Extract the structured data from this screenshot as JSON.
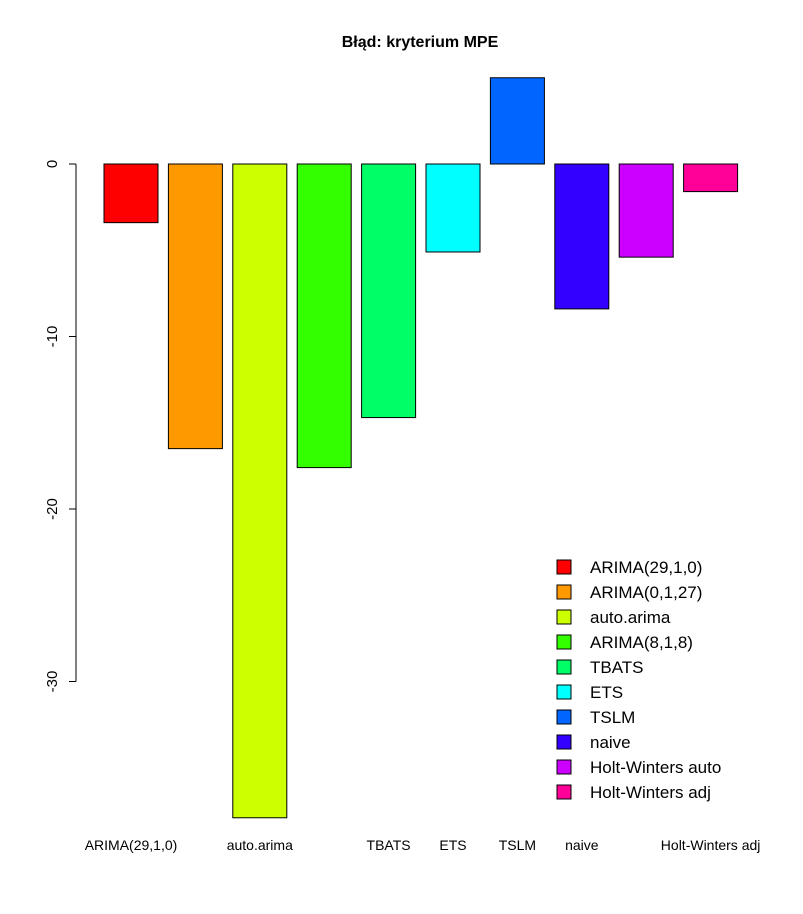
{
  "chart_data": {
    "type": "bar",
    "title": "Błąd: kryterium MPE",
    "xlabel": "",
    "ylabel": "",
    "ylim": [
      -38,
      5
    ],
    "yticks": [
      0,
      -10,
      -20,
      -30
    ],
    "categories": [
      "ARIMA(29,1,0)",
      "ARIMA(0,1,27)",
      "auto.arima",
      "ARIMA(8,1,8)",
      "TBATS",
      "ETS",
      "TSLM",
      "naive",
      "Holt-Winters auto",
      "Holt-Winters adj"
    ],
    "visible_category_labels": [
      "ARIMA(29,1,0)",
      "",
      "auto.arima",
      "",
      "TBATS",
      "ETS",
      "TSLM",
      "naive",
      "",
      "Holt-Winters adj"
    ],
    "values": [
      -3.4,
      -16.5,
      -37.9,
      -17.6,
      -14.7,
      -5.1,
      5.0,
      -8.4,
      -5.4,
      -1.6
    ],
    "colors": [
      "#FF0000",
      "#FF9900",
      "#CCFF00",
      "#33FF00",
      "#00FF66",
      "#00FFFF",
      "#0066FF",
      "#3300FF",
      "#CC00FF",
      "#FF0099"
    ],
    "grid": false,
    "legend": {
      "position": "bottom-right",
      "entries": [
        "ARIMA(29,1,0)",
        "ARIMA(0,1,27)",
        "auto.arima",
        "ARIMA(8,1,8)",
        "TBATS",
        "ETS",
        "TSLM",
        "naive",
        "Holt-Winters auto",
        "Holt-Winters adj"
      ]
    }
  }
}
